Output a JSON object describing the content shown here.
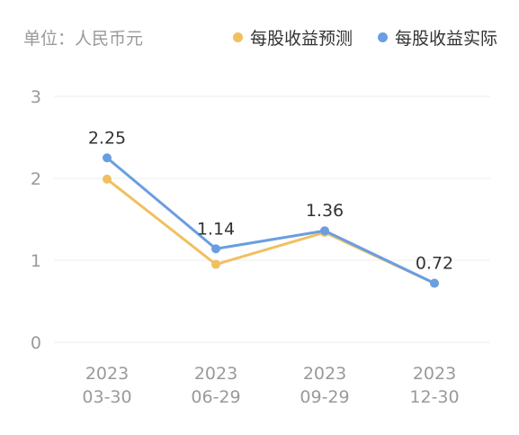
{
  "header": {
    "unit_label": "单位：人民币元"
  },
  "legend": {
    "items": [
      {
        "label": "每股收益预测",
        "color": "#f0c060"
      },
      {
        "label": "每股收益实际",
        "color": "#6a9ee0"
      }
    ]
  },
  "chart_data": {
    "type": "line",
    "categories": [
      [
        "2023",
        "03-30"
      ],
      [
        "2023",
        "06-29"
      ],
      [
        "2023",
        "09-29"
      ],
      [
        "2023",
        "12-30"
      ]
    ],
    "ylim": [
      0,
      3
    ],
    "yticks": [
      0,
      1,
      2,
      3
    ],
    "grid": true,
    "series": [
      {
        "name": "每股收益预测",
        "color": "#f0c060",
        "values": [
          1.99,
          0.95,
          1.34,
          0.72
        ]
      },
      {
        "name": "每股收益实际",
        "color": "#6a9ee0",
        "values": [
          2.25,
          1.14,
          1.36,
          0.72
        ]
      }
    ],
    "data_labels": [
      "2.25",
      "1.14",
      "1.36",
      "0.72"
    ]
  }
}
